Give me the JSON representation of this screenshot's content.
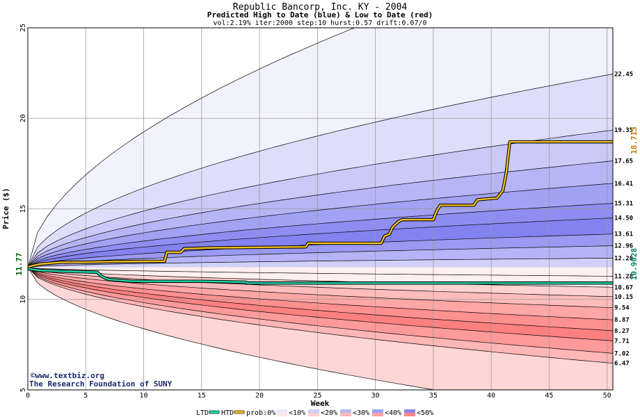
{
  "chart_data": {
    "type": "area",
    "title": "Republic Bancorp, Inc. KY - 2004",
    "subtitle": "Predicted High to Date (blue) &  Low to Date (red)",
    "params": "vol:2.19% iter:2000 step:10 hurst:0.57 drift:0.07/0",
    "xlabel": "Week",
    "ylabel": "Price ($)",
    "xlim": [
      0,
      50.5
    ],
    "ylim": [
      5,
      25
    ],
    "x_ticks": [
      0,
      5,
      10,
      15,
      20,
      25,
      30,
      35,
      40,
      45,
      50
    ],
    "y_ticks": [
      5,
      10,
      15,
      20,
      25
    ],
    "start_price": 11.77,
    "start_label": "11.77",
    "high_percentile_labels": [
      "22.45",
      "19.35",
      "17.65",
      "16.41",
      "15.31",
      "14.50",
      "13.61",
      "12.96",
      "12.28",
      "11.28"
    ],
    "high_percentile_finals": [
      22.45,
      19.35,
      17.65,
      16.41,
      15.31,
      14.5,
      13.61,
      12.96,
      12.28,
      11.28
    ],
    "low_percentile_labels": [
      "10.67",
      "10.15",
      "9.54",
      "8.87",
      "8.27",
      "7.71",
      "7.02",
      "6.47"
    ],
    "low_percentile_finals": [
      10.67,
      10.15,
      9.54,
      8.87,
      8.27,
      7.71,
      7.02,
      6.47
    ],
    "htd_final_label": "18.713",
    "ltd_final_label": "10.9028",
    "htd_series": {
      "name": "HTD",
      "x": [
        0,
        1,
        2,
        3,
        5,
        7,
        10,
        11.8,
        12,
        13.2,
        13.5,
        16,
        24,
        24.2,
        30.5,
        30.8,
        31.2,
        31.5,
        32,
        32.3,
        35,
        35.3,
        35.6,
        38.5,
        38.8,
        40.5,
        41,
        41.3,
        41.6,
        50.5
      ],
      "values": [
        11.8,
        11.95,
        12.0,
        12.05,
        12.05,
        12.08,
        12.1,
        12.1,
        12.6,
        12.6,
        12.8,
        12.85,
        12.9,
        13.1,
        13.1,
        13.5,
        13.6,
        14.0,
        14.3,
        14.4,
        14.4,
        14.9,
        15.2,
        15.2,
        15.5,
        15.6,
        16.0,
        17.0,
        18.7,
        18.7
      ]
    },
    "ltd_series": {
      "name": "LTD",
      "x": [
        0,
        1,
        3,
        6,
        6.3,
        6.6,
        7,
        8,
        9,
        12,
        15,
        18.8,
        19,
        25,
        30,
        35,
        40,
        50.5
      ],
      "values": [
        11.7,
        11.6,
        11.55,
        11.5,
        11.3,
        11.2,
        11.1,
        11.05,
        11.0,
        11.0,
        11.0,
        10.95,
        10.9,
        10.9,
        10.9,
        10.9,
        10.9,
        10.9
      ]
    },
    "legend": {
      "placement": "bottom",
      "ltd": "LTD",
      "htd": "HTD",
      "prob": "prob:0%",
      "bands": [
        "<10%",
        "<20%",
        "<30%",
        "<40%",
        "<50%"
      ]
    },
    "grid": true
  },
  "colors": {
    "htd": "#f0c020",
    "ltd": "#1fd8a8",
    "start_label": "#006000",
    "htd_label": "#c08000",
    "ltd_label": "#008060"
  },
  "watermark": {
    "line1": "©www.textbiz.org",
    "line2": "The Research Foundation of SUNY"
  }
}
